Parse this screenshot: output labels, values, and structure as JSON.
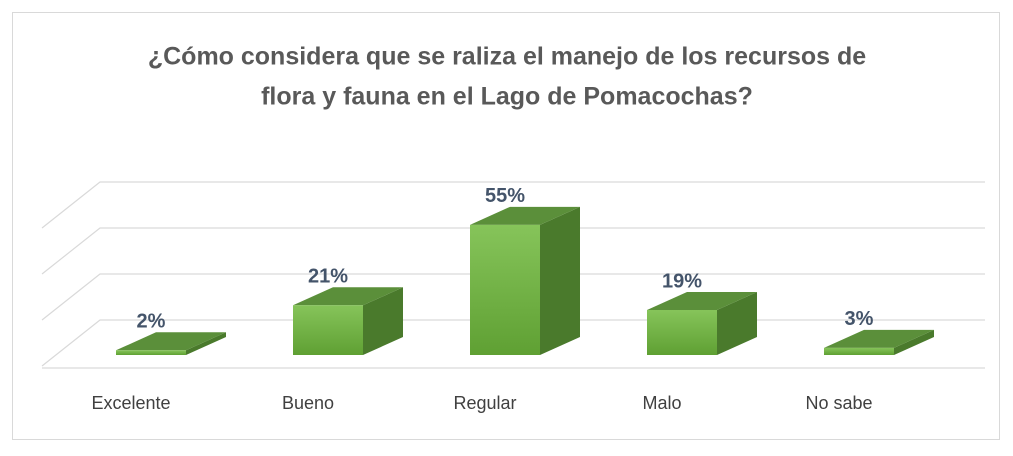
{
  "chart_data": {
    "type": "bar3d",
    "title": "¿Cómo considera que se raliza el manejo de los recursos de",
    "subtitle": "flora y fauna en el Lago de Pomacochas?",
    "categories": [
      "Excelente",
      "Bueno",
      "Regular",
      "Malo",
      "No sabe"
    ],
    "values": [
      2,
      21,
      55,
      19,
      3
    ],
    "value_labels": [
      "2%",
      "21%",
      "55%",
      "19%",
      "3%"
    ],
    "color": "#70ad47",
    "ylim": [
      0,
      60
    ],
    "yticks": [
      0,
      20,
      40,
      60
    ],
    "grid": true
  }
}
